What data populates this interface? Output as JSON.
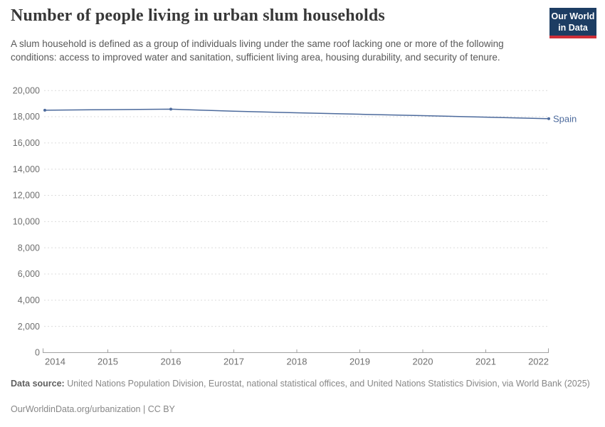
{
  "header": {
    "title": "Number of people living in urban slum households",
    "subtitle": "A slum household is defined as a group of individuals living under the same roof lacking one or more of the following conditions: access to improved water and sanitation, sufficient living area, housing durability, and security of tenure.",
    "logo": {
      "line1": "Our World",
      "line2": "in Data",
      "bg_color": "#1d3d63",
      "stripe_color": "#cf2f38"
    }
  },
  "chart_data": {
    "type": "line",
    "title": "Number of people living in urban slum households",
    "x": [
      2014,
      2015,
      2016,
      2017,
      2018,
      2019,
      2020,
      2021,
      2022
    ],
    "series": [
      {
        "name": "Spain",
        "color": "#4c6a9c",
        "values": [
          18500,
          18540,
          18580,
          18420,
          18300,
          18190,
          18080,
          17970,
          17850
        ],
        "marker_years": [
          2014,
          2016,
          2022
        ]
      }
    ],
    "ylim": [
      0,
      20000
    ],
    "ytick_step": 2000,
    "yticks": [
      0,
      2000,
      4000,
      6000,
      8000,
      10000,
      12000,
      14000,
      16000,
      18000,
      20000
    ],
    "xlabel": "",
    "ylabel": "",
    "grid": "horizontal-dashed",
    "legend": "end-of-line-label",
    "grid_color": "#dcdcdc",
    "axis_color": "#a1a1a1",
    "tick_label_color": "#6f6f6f"
  },
  "footer": {
    "data_source_label": "Data source:",
    "data_source_text": " United Nations Population Division, Eurostat, national statistical offices, and United Nations Statistics Division, via World Bank (2025)",
    "attribution": "OurWorldinData.org/urbanization | CC BY"
  }
}
